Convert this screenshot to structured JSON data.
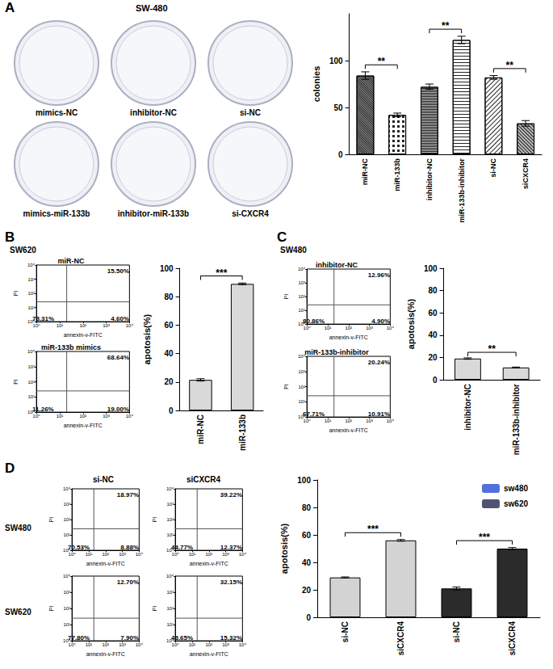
{
  "panels": [
    {
      "label": "A",
      "subtitle": "SW-480",
      "dishes": [
        "mimics-NC",
        "inhibitor-NC",
        "si-NC",
        "mimics-miR-133b",
        "inhibitor-miR-133b",
        "si-CXCR4"
      ]
    },
    {
      "label": "B",
      "subtitle": "SW620",
      "flow": [
        {
          "title": "miR-NC",
          "quadrants": {
            "upper_right": "15.50%",
            "lower_left": "78.31%",
            "lower_right": "4.60%"
          }
        },
        {
          "title": "miR-133b mimics",
          "quadrants": {
            "upper_right": "68.64%",
            "lower_left": "11.26%",
            "lower_right": "19.00%"
          }
        }
      ]
    },
    {
      "label": "C",
      "subtitle": "SW480",
      "flow": [
        {
          "title": "inhibitor-NC",
          "quadrants": {
            "upper_right": "12.96%",
            "lower_left": "80.86%",
            "lower_right": "4.90%"
          }
        },
        {
          "title": "miR-133b-inhibitor",
          "quadrants": {
            "upper_right": "20.24%",
            "lower_left": "67.71%",
            "lower_right": "10.91%"
          }
        }
      ]
    },
    {
      "label": "D",
      "columns": [
        "si-NC",
        "siCXCR4"
      ],
      "rows": [
        "SW480",
        "SW620"
      ],
      "flow": [
        [
          {
            "quadrants": {
              "upper_right": "18.97%",
              "lower_left": "70.53%",
              "lower_right": "8.88%"
            }
          },
          {
            "quadrants": {
              "upper_right": "39.22%",
              "lower_left": "44.77%",
              "lower_right": "12.37%"
            }
          }
        ],
        [
          {
            "quadrants": {
              "upper_right": "12.70%",
              "lower_left": "77.80%",
              "lower_right": "7.90%"
            }
          },
          {
            "quadrants": {
              "upper_right": "32.15%",
              "lower_left": "48.65%",
              "lower_right": "15.32%"
            }
          }
        ]
      ]
    }
  ],
  "flow_axes": {
    "x_label": "annexin-v-FITC",
    "y_label": "PI",
    "xlim": [
      1,
      10000
    ],
    "ylim": [
      1,
      10000
    ],
    "xticks": [
      {
        "value": 1,
        "label": "10⁰"
      },
      {
        "value": 10,
        "label": "10¹"
      },
      {
        "value": 100,
        "label": "10²"
      },
      {
        "value": 1000,
        "label": "10³"
      },
      {
        "value": 10000,
        "label": "10⁴"
      }
    ],
    "yticks": [
      {
        "value": 1,
        "label": "10⁰"
      },
      {
        "value": 10,
        "label": "10¹"
      },
      {
        "value": 100,
        "label": "10²"
      },
      {
        "value": 1000,
        "label": "10³"
      },
      {
        "value": 10000,
        "label": "10⁴"
      }
    ],
    "log": true,
    "gate": {
      "x": 20,
      "y": 25
    }
  },
  "chart_data": [
    {
      "type": "bar",
      "y_label": "colonies",
      "categories": [
        "miR-NC",
        "miR-133b",
        "inhibitor-NC",
        "miR-133b-inhibitor",
        "si-NC",
        "siCXCR4"
      ],
      "values": [
        84,
        42,
        72,
        122,
        82,
        33
      ],
      "errors": [
        4,
        2,
        3,
        4,
        2,
        3
      ],
      "colors": [
        "#9a9a9a",
        "#ffffff",
        "#bdbdbd",
        "#ffffff",
        "#ffffff",
        "#bdbdbd"
      ],
      "ylim": [
        0,
        150
      ],
      "yticks": [
        0,
        50,
        100
      ],
      "significance": [
        {
          "from": "miR-NC",
          "to": "miR-133b",
          "label": "**"
        },
        {
          "from": "inhibitor-NC",
          "to": "miR-133b-inhibitor",
          "label": "**"
        },
        {
          "from": "si-NC",
          "to": "siCXCR4",
          "label": "**"
        }
      ]
    },
    {
      "type": "bar",
      "y_label": "apotosis(%)",
      "categories": [
        "miR-NC",
        "miR-133b"
      ],
      "values": [
        21.5,
        89
      ],
      "errors": [
        0.8,
        0.6
      ],
      "color": "#d9d9d9",
      "ylim": [
        0,
        100
      ],
      "yticks": [
        0,
        20,
        40,
        60,
        80,
        100
      ],
      "significance": [
        {
          "from": "miR-NC",
          "to": "miR-133b",
          "label": "***"
        }
      ]
    },
    {
      "type": "bar",
      "y_label": "apotosis(%)",
      "categories": [
        "inhibitor-NC",
        "miR-133b-inhibitor"
      ],
      "values": [
        19,
        11
      ],
      "errors": [
        0.6,
        0.4
      ],
      "color": "#d9d9d9",
      "ylim": [
        0,
        100
      ],
      "yticks": [
        0,
        20,
        40,
        60,
        80,
        100
      ],
      "significance": [
        {
          "from": "inhibitor-NC",
          "to": "miR-133b-inhibitor",
          "label": "**"
        }
      ]
    },
    {
      "type": "bar",
      "y_label": "apotosis(%)",
      "categories": [
        "si-NC",
        "siCXCR4",
        "si-NC",
        "siCXCR4"
      ],
      "series": [
        {
          "name": "sw480",
          "color": "#d3d3d3",
          "values": [
            29,
            56,
            null,
            null
          ],
          "errors": [
            0.4,
            0.6,
            null,
            null
          ],
          "significance": "***"
        },
        {
          "name": "sw620",
          "color": "#2b2b2b",
          "values": [
            null,
            null,
            21,
            50
          ],
          "errors": [
            null,
            null,
            1,
            0.8
          ],
          "significance": "***"
        }
      ],
      "ylim": [
        0,
        100
      ],
      "yticks": [
        0,
        20,
        40,
        60,
        80,
        100
      ],
      "legend": "upper right"
    }
  ]
}
